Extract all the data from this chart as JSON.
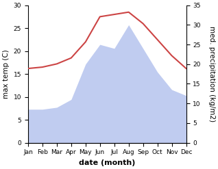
{
  "months": [
    "Jan",
    "Feb",
    "Mar",
    "Apr",
    "May",
    "Jun",
    "Jul",
    "Aug",
    "Sep",
    "Oct",
    "Nov",
    "Dec"
  ],
  "x": [
    1,
    2,
    3,
    4,
    5,
    6,
    7,
    8,
    9,
    10,
    11,
    12
  ],
  "temperature": [
    16.2,
    16.5,
    17.2,
    18.5,
    22.0,
    27.5,
    28.0,
    28.5,
    26.0,
    22.5,
    19.0,
    16.2
  ],
  "precipitation": [
    8.5,
    8.5,
    9.0,
    11.0,
    20.0,
    25.0,
    24.0,
    30.0,
    24.0,
    18.0,
    13.5,
    12.0
  ],
  "temp_color": "#cc4444",
  "precip_color": "#c0ccf0",
  "left_ylim": [
    0,
    30
  ],
  "right_ylim": [
    0,
    35
  ],
  "left_ylabel": "max temp (C)",
  "right_ylabel": "med. precipitation (kg/m2)",
  "xlabel": "date (month)",
  "label_fontsize": 7.5,
  "tick_fontsize": 6.5,
  "xlabel_fontsize": 8,
  "linewidth": 1.5
}
